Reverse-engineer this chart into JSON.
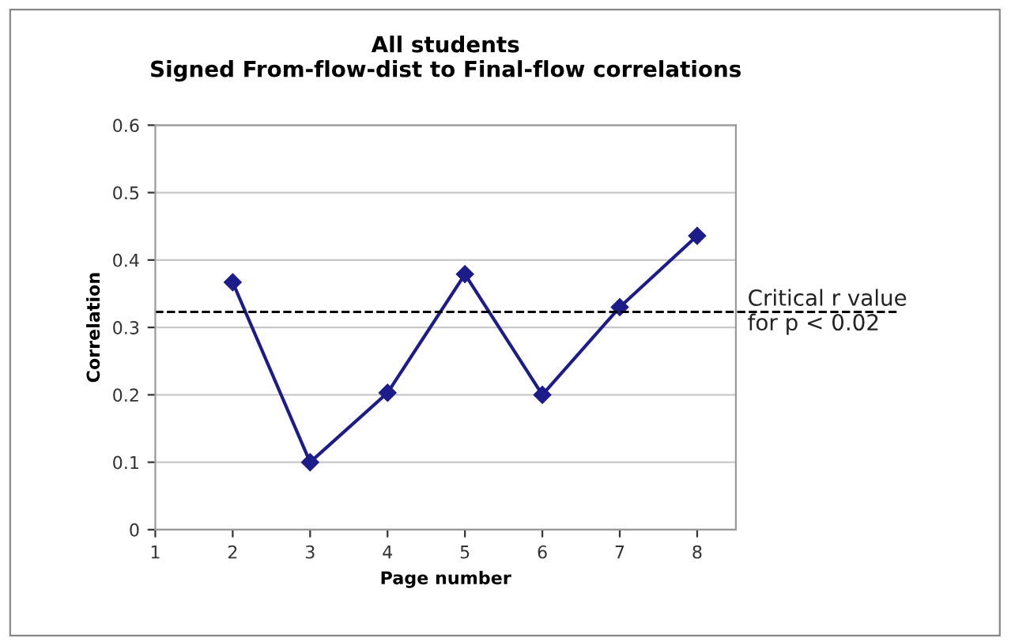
{
  "chart_data": {
    "type": "line",
    "title": "All students\nSigned From-flow-dist to Final-flow correlations",
    "xlabel": "Page number",
    "ylabel": "Correlation",
    "categories": [
      "1",
      "2",
      "3",
      "4",
      "5",
      "6",
      "7",
      "8"
    ],
    "series": [
      {
        "color": "#1c1c8a",
        "values": [
          null,
          0.367,
          0.1,
          0.203,
          0.379,
          0.2,
          0.33,
          0.436
        ]
      }
    ],
    "ylim": [
      0,
      0.6
    ],
    "yticks": [
      0,
      0.1,
      0.2,
      0.3,
      0.4,
      0.5,
      0.6
    ],
    "grid": "y",
    "marker": "diamond",
    "line_style": "solid",
    "legend": false,
    "ref_lines": [
      {
        "axis": "y",
        "value": 0.323,
        "label": "Critical r value\nfor p < 0.02",
        "color": "#000000",
        "line_style": "dashed"
      }
    ]
  }
}
